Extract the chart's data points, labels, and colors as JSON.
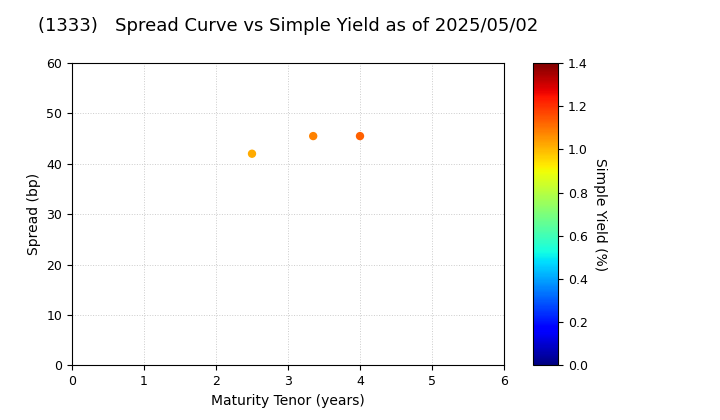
{
  "title": "(1333)   Spread Curve vs Simple Yield as of 2025/05/02",
  "xlabel": "Maturity Tenor (years)",
  "ylabel": "Spread (bp)",
  "colorbar_label": "Simple Yield (%)",
  "xlim": [
    0,
    6
  ],
  "ylim": [
    0,
    60
  ],
  "xticks": [
    0,
    1,
    2,
    3,
    4,
    5,
    6
  ],
  "yticks": [
    0,
    10,
    20,
    30,
    40,
    50,
    60
  ],
  "colorbar_vmin": 0.0,
  "colorbar_vmax": 1.4,
  "colorbar_ticks": [
    0.0,
    0.2,
    0.4,
    0.6,
    0.8,
    1.0,
    1.2,
    1.4
  ],
  "scatter_x": [
    2.5,
    3.35,
    4.0
  ],
  "scatter_y": [
    42,
    45.5,
    45.5
  ],
  "scatter_simple_yield": [
    1.02,
    1.08,
    1.13
  ],
  "background_color": "#ffffff",
  "grid_color": "#cccccc",
  "title_fontsize": 13,
  "axis_label_fontsize": 10,
  "tick_fontsize": 9,
  "marker_size": 5
}
